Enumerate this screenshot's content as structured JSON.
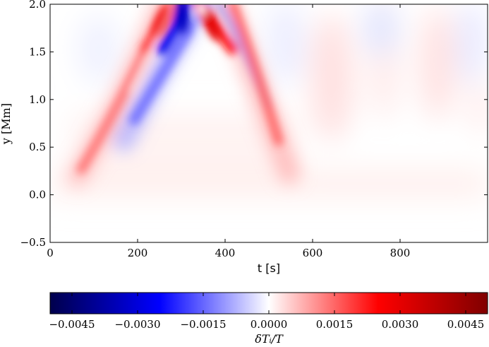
{
  "chart_data": {
    "type": "heatmap",
    "title": "",
    "xlabel": "t [s]",
    "ylabel": "y [Mm]",
    "xlim": [
      0,
      1000
    ],
    "ylim": [
      -0.5,
      2.0
    ],
    "xticks": [
      0,
      200,
      400,
      600,
      800
    ],
    "xtick_labels": [
      "0",
      "200",
      "400",
      "600",
      "800"
    ],
    "yticks": [
      -0.5,
      0.0,
      0.5,
      1.0,
      1.5,
      2.0
    ],
    "ytick_labels": [
      "−0.5",
      "0.0",
      "0.5",
      "1.0",
      "1.5",
      "2.0"
    ],
    "colorbar": {
      "label": "δTᵢ/T",
      "range": [
        -0.005,
        0.005
      ],
      "ticks": [
        -0.0045,
        -0.003,
        -0.0015,
        0.0,
        0.0015,
        0.003,
        0.0045
      ],
      "tick_labels": [
        "−0.0045",
        "−0.0030",
        "−0.0015",
        "0.0000",
        "0.0015",
        "0.0030",
        "0.0045"
      ],
      "colormap": "seismic",
      "color_min": "#00004c",
      "color_mid": "#ffffff",
      "color_max": "#800000"
    },
    "features": [
      {
        "name": "left red ridge",
        "sign": "positive",
        "peak": 0.0035,
        "path": [
          [
            70,
            0.25
          ],
          [
            150,
            0.8
          ],
          [
            210,
            1.4
          ],
          [
            255,
            2.0
          ]
        ]
      },
      {
        "name": "central blue ridge",
        "sign": "negative",
        "peak": -0.004,
        "path": [
          [
            290,
            2.0
          ],
          [
            250,
            1.5
          ],
          [
            200,
            1.0
          ],
          [
            160,
            0.7
          ]
        ]
      },
      {
        "name": "right red ridge",
        "sign": "positive",
        "peak": 0.0038,
        "path": [
          [
            330,
            2.0
          ],
          [
            380,
            1.4
          ],
          [
            440,
            0.8
          ],
          [
            500,
            0.25
          ]
        ]
      },
      {
        "name": "right blue ridge",
        "sign": "negative",
        "peak": -0.0015,
        "path": [
          [
            310,
            2.0
          ],
          [
            350,
            1.5
          ],
          [
            400,
            1.1
          ]
        ]
      }
    ]
  }
}
